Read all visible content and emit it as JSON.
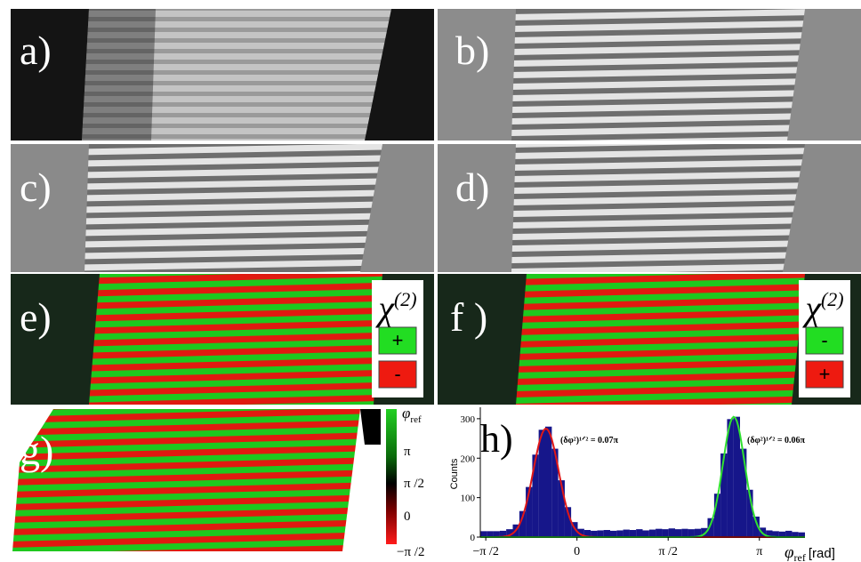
{
  "panels": [
    "a)",
    "b)",
    "c)",
    "d)",
    "e)",
    "f )",
    "g)",
    "h)"
  ],
  "legend_e": {
    "symbol": "χ",
    "superscript": "(2)",
    "signs": [
      "+",
      "-"
    ]
  },
  "legend_f": {
    "symbol": "χ",
    "superscript": "(2)",
    "signs": [
      "-",
      "+"
    ]
  },
  "colorbar": {
    "title": "φ",
    "title_sub": "ref",
    "labels": [
      "π",
      "π /2",
      "0",
      "−π /2"
    ]
  },
  "chart_data": {
    "type": "histogram",
    "ylabel": "Counts",
    "xlabel": "φ",
    "xlabel_sub": "ref",
    "xlabel_unit": "[rad]",
    "bins": [
      -0.53,
      -0.494,
      -0.459,
      -0.423,
      -0.388,
      -0.352,
      -0.316,
      -0.281,
      -0.245,
      -0.21,
      -0.174,
      -0.138,
      -0.103,
      -0.067,
      -0.032,
      0.004,
      0.04,
      0.075,
      0.111,
      0.146,
      0.182,
      0.218,
      0.253,
      0.289,
      0.324,
      0.36,
      0.396,
      0.431,
      0.467,
      0.502,
      0.538,
      0.574,
      0.609,
      0.645,
      0.68,
      0.716,
      0.752,
      0.787,
      0.823,
      0.858,
      0.894,
      0.93,
      0.965,
      1.001,
      1.036,
      1.072,
      1.108,
      1.143,
      1.179,
      1.214,
      1.25
    ],
    "counts": [
      15,
      15,
      15,
      16,
      20,
      32,
      66,
      127,
      209,
      272,
      280,
      224,
      144,
      76,
      38,
      21,
      18,
      16,
      17,
      18,
      16,
      17,
      19,
      18,
      20,
      17,
      19,
      21,
      20,
      22,
      20,
      21,
      20,
      21,
      23,
      48,
      110,
      212,
      299,
      305,
      224,
      120,
      52,
      24,
      17,
      15,
      14,
      16,
      13,
      12
    ],
    "color": "#16168a",
    "fits": [
      {
        "color": "#e01818",
        "center": -0.17,
        "sigma": 0.07,
        "amplitude": 275
      },
      {
        "color": "#30e030",
        "center": 0.86,
        "sigma": 0.06,
        "amplitude": 305
      }
    ],
    "annotations": [
      "(δφ²)¹ᐟ² = 0.07π",
      "(δφ²)¹ᐟ² = 0.06π"
    ],
    "xlim": [
      -0.53,
      1.25
    ],
    "ylim": [
      0,
      320
    ],
    "xticks": [
      {
        "value": -0.5,
        "label": "−π /2"
      },
      {
        "value": 0,
        "label": "0"
      },
      {
        "value": 0.5,
        "label": "π /2"
      },
      {
        "value": 1,
        "label": "π"
      }
    ],
    "yticks": [
      0,
      100,
      200,
      300
    ]
  }
}
